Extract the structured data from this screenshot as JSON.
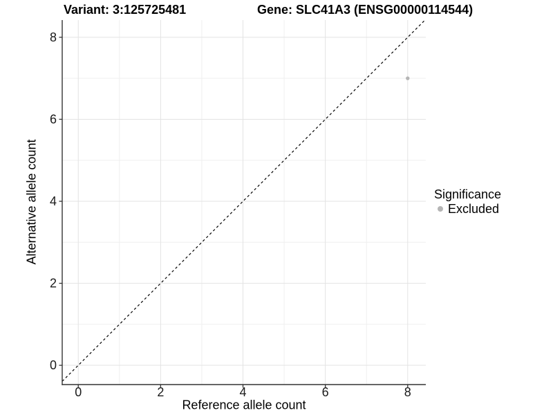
{
  "header": {
    "variant_title": "Variant: 3:125725481",
    "gene_title": "Gene: SLC41A3 (ENSG00000114544)"
  },
  "chart_data": {
    "type": "scatter",
    "xlabel": "Reference allele count",
    "ylabel": "Alternative allele count",
    "xlim": [
      -0.39,
      8.44
    ],
    "ylim": [
      -0.47,
      8.42
    ],
    "xticks": [
      0,
      2,
      4,
      6,
      8
    ],
    "yticks": [
      0,
      2,
      4,
      6,
      8
    ],
    "xticks_minor": [
      1,
      3,
      5,
      7
    ],
    "yticks_minor": [
      1,
      3,
      5,
      7
    ],
    "grid": "on",
    "points": [
      {
        "x": 8,
        "y": 7,
        "series": "Excluded"
      }
    ],
    "reference_line": {
      "kind": "identity",
      "slope": 1,
      "intercept": 0,
      "style": "dashed",
      "color": "#000000"
    },
    "legend": {
      "title": "Significance",
      "position": "right",
      "entries": [
        {
          "label": "Excluded",
          "color": "#b5b5b5"
        }
      ]
    },
    "colors": {
      "point": "#b5b5b5",
      "grid_major": "#e3e3e3",
      "grid_minor": "#efefef",
      "axis": "#333333",
      "tick_text": "#1a1a1a"
    }
  }
}
